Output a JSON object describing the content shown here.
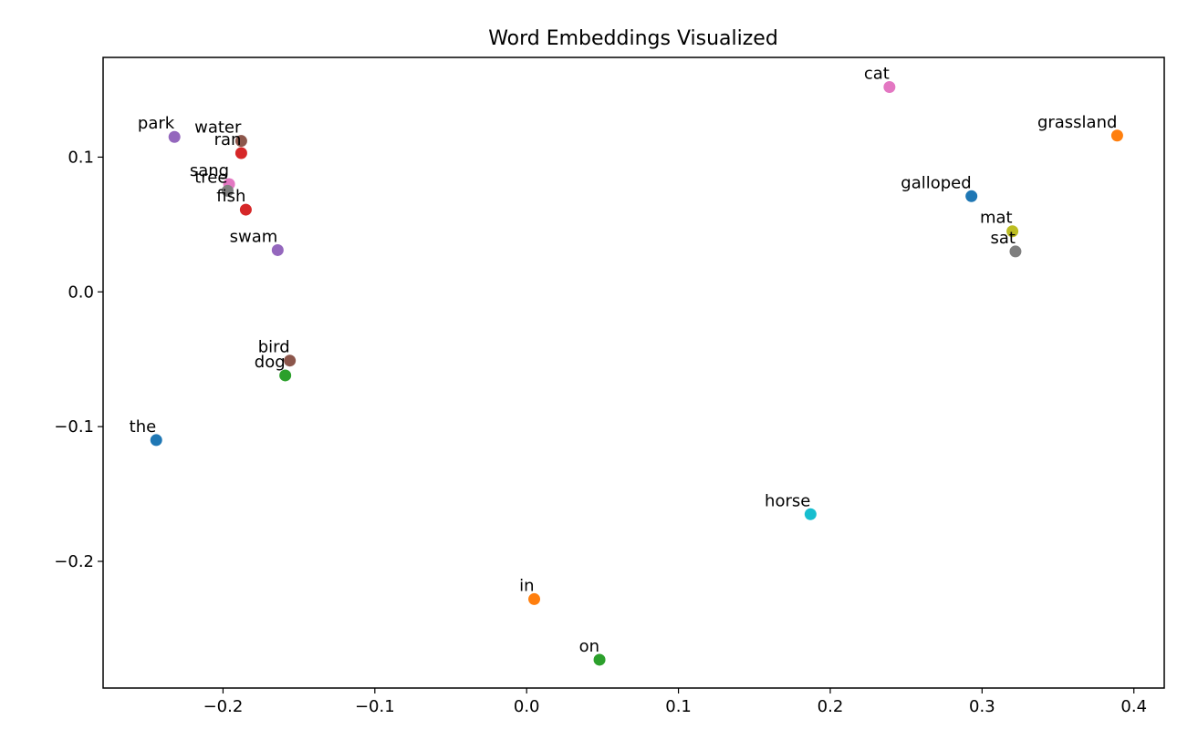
{
  "chart_data": {
    "type": "scatter",
    "title": "Word Embeddings Visualized",
    "xlabel": "",
    "ylabel": "",
    "xlim": [
      -0.279,
      0.42
    ],
    "ylim": [
      -0.294,
      0.174
    ],
    "xticks": [
      {
        "value": -0.2,
        "label": "−0.2"
      },
      {
        "value": -0.1,
        "label": "−0.1"
      },
      {
        "value": 0.0,
        "label": "0.0"
      },
      {
        "value": 0.1,
        "label": "0.1"
      },
      {
        "value": 0.2,
        "label": "0.2"
      },
      {
        "value": 0.3,
        "label": "0.3"
      },
      {
        "value": 0.4,
        "label": "0.4"
      }
    ],
    "yticks": [
      {
        "value": 0.1,
        "label": "0.1"
      },
      {
        "value": 0.0,
        "label": "0.0"
      },
      {
        "value": -0.1,
        "label": "−0.1"
      },
      {
        "value": -0.2,
        "label": "−0.2"
      }
    ],
    "grid": false,
    "points": [
      {
        "word": "the",
        "x": -0.244,
        "y": -0.11,
        "color": "#1f77b4"
      },
      {
        "word": "cat",
        "x": 0.239,
        "y": 0.152,
        "color": "#e377c2"
      },
      {
        "word": "sat",
        "x": 0.322,
        "y": 0.03,
        "color": "#7f7f7f"
      },
      {
        "word": "on",
        "x": 0.048,
        "y": -0.273,
        "color": "#2ca02c"
      },
      {
        "word": "mat",
        "x": 0.32,
        "y": 0.045,
        "color": "#bcbd22"
      },
      {
        "word": "dog",
        "x": -0.159,
        "y": -0.062,
        "color": "#2ca02c"
      },
      {
        "word": "ran",
        "x": -0.188,
        "y": 0.103,
        "color": "#d62728"
      },
      {
        "word": "in",
        "x": 0.005,
        "y": -0.228,
        "color": "#ff7f0e"
      },
      {
        "word": "park",
        "x": -0.232,
        "y": 0.115,
        "color": "#9467bd"
      },
      {
        "word": "bird",
        "x": -0.156,
        "y": -0.051,
        "color": "#8c564b"
      },
      {
        "word": "sang",
        "x": -0.196,
        "y": 0.08,
        "color": "#e377c2"
      },
      {
        "word": "tree",
        "x": -0.197,
        "y": 0.075,
        "color": "#7f7f7f"
      },
      {
        "word": "fish",
        "x": -0.185,
        "y": 0.061,
        "color": "#d62728"
      },
      {
        "word": "swam",
        "x": -0.164,
        "y": 0.031,
        "color": "#9467bd"
      },
      {
        "word": "water",
        "x": -0.188,
        "y": 0.112,
        "color": "#8c564b"
      },
      {
        "word": "horse",
        "x": 0.187,
        "y": -0.165,
        "color": "#17becf"
      },
      {
        "word": "galloped",
        "x": 0.293,
        "y": 0.071,
        "color": "#1f77b4"
      },
      {
        "word": "grassland",
        "x": 0.389,
        "y": 0.116,
        "color": "#ff7f0e"
      }
    ]
  }
}
